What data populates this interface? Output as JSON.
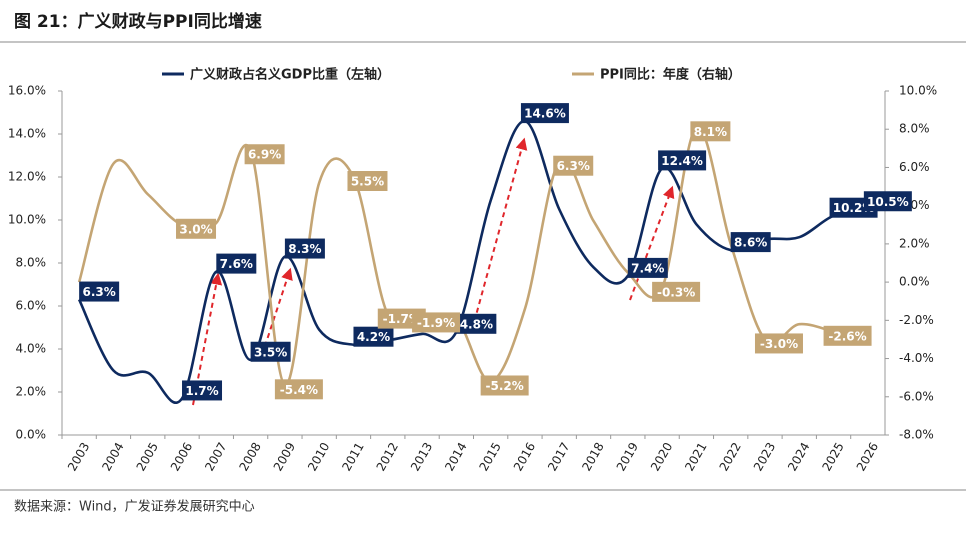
{
  "chart_data": {
    "type": "line",
    "title": "图 21：广义财政与PPI同比增速",
    "source": "数据来源：Wind，广发证券发展研究中心",
    "categories": [
      "2003",
      "2004",
      "2005",
      "2006",
      "2007",
      "2008",
      "2009",
      "2010",
      "2011",
      "2012",
      "2013",
      "2014",
      "2015",
      "2016",
      "2017",
      "2018",
      "2019",
      "2020",
      "2021",
      "2022",
      "2023",
      "2024",
      "2025",
      "2026"
    ],
    "series": [
      {
        "name": "广义财政占名义GDP比重（左轴）",
        "color": "#0e2a5f",
        "axis": "y",
        "values": [
          6.3,
          3.0,
          2.9,
          1.7,
          7.6,
          3.5,
          8.3,
          4.9,
          4.2,
          4.4,
          4.7,
          4.8,
          10.9,
          14.6,
          10.5,
          7.8,
          7.4,
          12.4,
          9.8,
          8.6,
          9.1,
          9.2,
          10.2,
          10.5
        ],
        "value_labels": [
          "6.3%",
          null,
          null,
          "1.7%",
          "7.6%",
          "3.5%",
          "8.3%",
          null,
          "4.2%",
          null,
          null,
          "4.8%",
          null,
          "14.6%",
          null,
          null,
          "7.4%",
          "12.4%",
          null,
          "8.6%",
          null,
          null,
          "10.2%",
          "10.5%"
        ]
      },
      {
        "name": "PPI同比：年度（右轴）",
        "color": "#c4a574",
        "axis": "y2",
        "values": [
          0.0,
          6.2,
          4.6,
          3.0,
          3.1,
          6.9,
          -5.4,
          5.2,
          5.5,
          -1.7,
          -1.9,
          -1.9,
          -5.2,
          -1.4,
          6.3,
          3.2,
          0.5,
          -0.3,
          8.1,
          2.0,
          -3.0,
          -2.2,
          -2.6,
          null
        ],
        "value_labels": [
          null,
          null,
          null,
          "3.0%",
          null,
          "6.9%",
          "-5.4%",
          null,
          "5.5%",
          "-1.7%",
          "-1.9%",
          null,
          "-5.2%",
          null,
          "6.3%",
          null,
          null,
          "-0.3%",
          "8.1%",
          null,
          "-3.0%",
          null,
          "-2.6%",
          null
        ]
      }
    ],
    "ylim": [
      0,
      16
    ],
    "yticks": [
      {
        "value": 0,
        "label": "0.0%"
      },
      {
        "value": 2,
        "label": "2.0%"
      },
      {
        "value": 4,
        "label": "4.0%"
      },
      {
        "value": 6,
        "label": "6.0%"
      },
      {
        "value": 8,
        "label": "8.0%"
      },
      {
        "value": 10,
        "label": "10.0%"
      },
      {
        "value": 12,
        "label": "12.0%"
      },
      {
        "value": 14,
        "label": "14.0%"
      },
      {
        "value": 16,
        "label": "16.0%"
      }
    ],
    "y2lim": [
      -8,
      10
    ],
    "y2ticks": [
      {
        "value": -8,
        "label": "-8.0%"
      },
      {
        "value": -6,
        "label": "-6.0%"
      },
      {
        "value": -4,
        "label": "-4.0%"
      },
      {
        "value": -2,
        "label": "-2.0%"
      },
      {
        "value": 0,
        "label": "0.0%"
      },
      {
        "value": 2,
        "label": "2.0%"
      },
      {
        "value": 4,
        "label": "4.0%"
      },
      {
        "value": 6,
        "label": "6.0%"
      },
      {
        "value": 8,
        "label": "8.0%"
      },
      {
        "value": 10,
        "label": "10.0%"
      }
    ],
    "grid": false
  }
}
